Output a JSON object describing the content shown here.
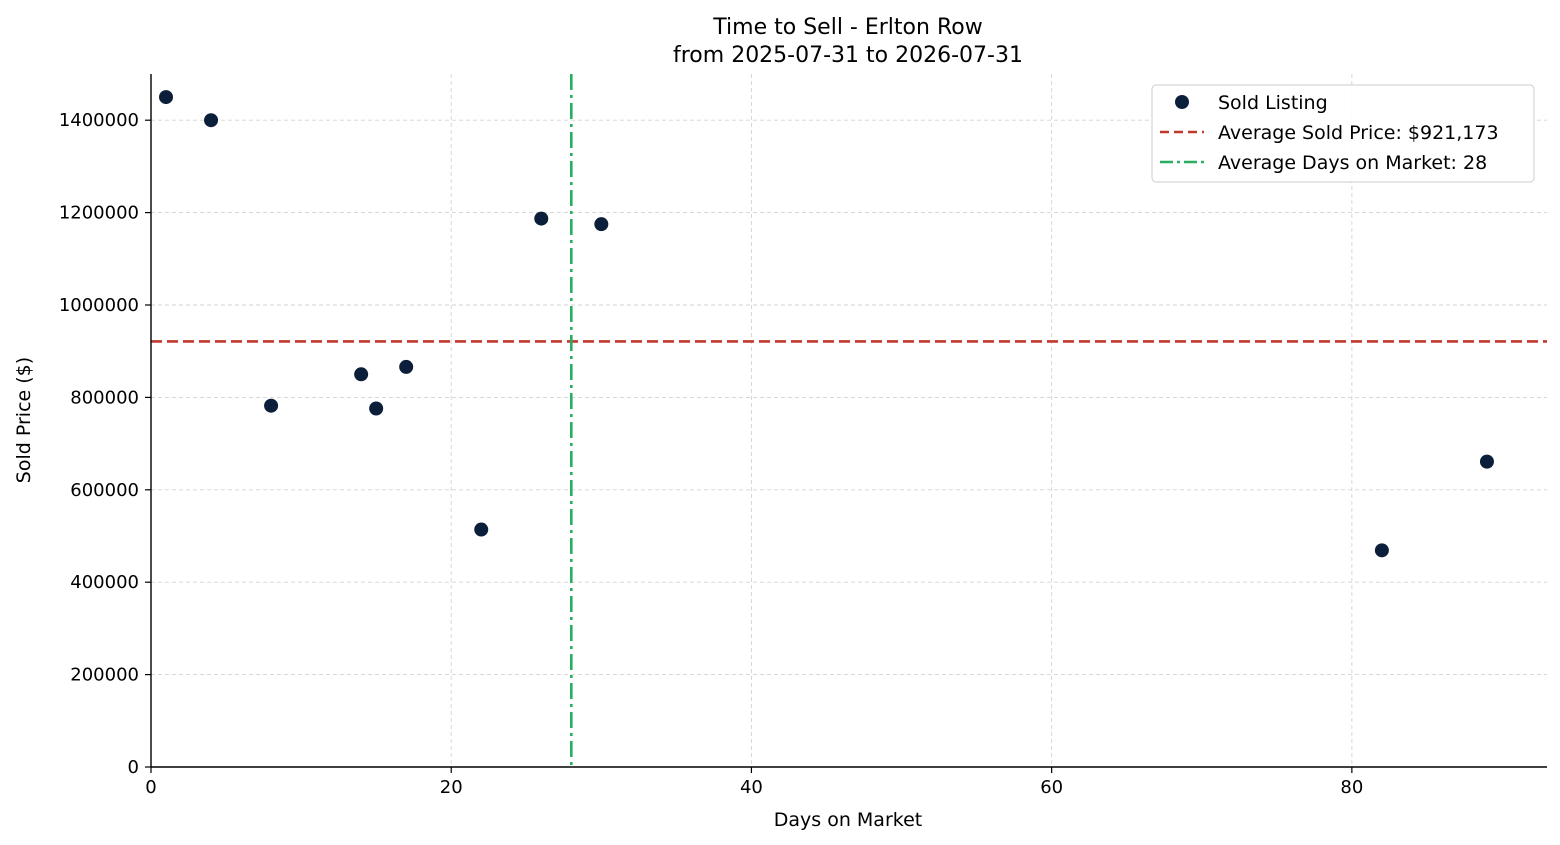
{
  "chart_data": {
    "type": "scatter",
    "title": "Time to Sell - Erlton Row",
    "subtitle": "from 2025-07-31 to 2026-07-31",
    "xlabel": "Days on Market",
    "ylabel": "Sold Price ($)",
    "xlim": [
      0,
      93
    ],
    "ylim": [
      0,
      1500000
    ],
    "x_ticks": [
      0,
      20,
      40,
      60,
      80
    ],
    "y_ticks": [
      0,
      200000,
      400000,
      600000,
      800000,
      1000000,
      1200000,
      1400000
    ],
    "grid": true,
    "legend_position": "top-right",
    "series": [
      {
        "name": "Sold Listing",
        "color": "#0b1f3a",
        "points": [
          {
            "x": 1,
            "y": 1450000
          },
          {
            "x": 4,
            "y": 1400000
          },
          {
            "x": 8,
            "y": 782000
          },
          {
            "x": 14,
            "y": 850000
          },
          {
            "x": 15,
            "y": 776000
          },
          {
            "x": 17,
            "y": 866000
          },
          {
            "x": 22,
            "y": 514000
          },
          {
            "x": 26,
            "y": 1187000
          },
          {
            "x": 30,
            "y": 1175000
          },
          {
            "x": 82,
            "y": 469000
          },
          {
            "x": 89,
            "y": 661000
          }
        ]
      }
    ],
    "reference_lines": [
      {
        "name": "Average Sold Price: $921,173",
        "orientation": "horizontal",
        "value": 921173,
        "style": "dashed",
        "color": "#c0392b"
      },
      {
        "name": "Average Days on Market: 28",
        "orientation": "vertical",
        "value": 28,
        "style": "dashdot",
        "color": "#27ae60"
      }
    ]
  }
}
